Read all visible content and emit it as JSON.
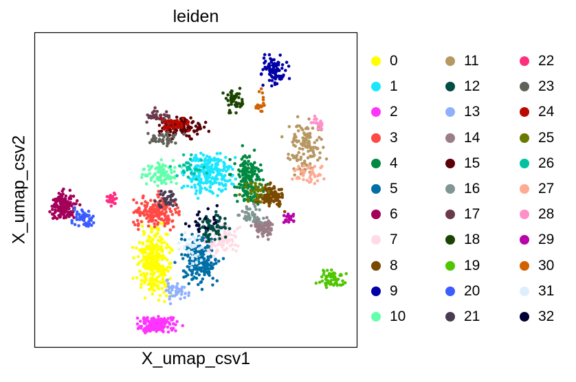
{
  "chart_data": {
    "type": "scatter",
    "title": "leiden",
    "xlabel": "X_umap_csv1",
    "ylabel": "X_umap_csv2",
    "grid": false,
    "legend_placement": "right, outside plot, 3 columns",
    "xlim": [
      0,
      100
    ],
    "ylim": [
      0,
      100
    ],
    "x_tick_labels": [],
    "y_tick_labels": [],
    "point_count_estimate": "approximately 3000 points",
    "series": [
      {
        "name": "0",
        "color": "#ffff00",
        "centroid": [
          37,
          27
        ],
        "spread": [
          4.5,
          9
        ],
        "n": 300
      },
      {
        "name": "1",
        "color": "#1ce6ff",
        "centroid": [
          54,
          55
        ],
        "spread": [
          6,
          6
        ],
        "n": 230
      },
      {
        "name": "2",
        "color": "#ff34ff",
        "centroid": [
          38,
          7
        ],
        "spread": [
          5.5,
          2.5
        ],
        "n": 150
      },
      {
        "name": "3",
        "color": "#ff4a46",
        "centroid": [
          38,
          43
        ],
        "spread": [
          6,
          4
        ],
        "n": 180
      },
      {
        "name": "4",
        "color": "#008941",
        "centroid": [
          66,
          53
        ],
        "spread": [
          4,
          7
        ],
        "n": 170
      },
      {
        "name": "5",
        "color": "#006fa6",
        "centroid": [
          51,
          28
        ],
        "spread": [
          5,
          7
        ],
        "n": 200
      },
      {
        "name": "6",
        "color": "#a30059",
        "centroid": [
          9,
          45
        ],
        "spread": [
          3.5,
          4
        ],
        "n": 140
      },
      {
        "name": "7",
        "color": "#ffdbe5",
        "centroid": [
          58,
          35
        ],
        "spread": [
          5,
          5
        ],
        "n": 90
      },
      {
        "name": "8",
        "color": "#7a4900",
        "centroid": [
          73,
          48
        ],
        "spread": [
          3.5,
          3
        ],
        "n": 110
      },
      {
        "name": "9",
        "color": "#0000a6",
        "centroid": [
          74,
          88
        ],
        "spread": [
          3,
          4
        ],
        "n": 90
      },
      {
        "name": "10",
        "color": "#63ffac",
        "centroid": [
          39,
          55
        ],
        "spread": [
          4.5,
          3
        ],
        "n": 90
      },
      {
        "name": "11",
        "color": "#b79762",
        "centroid": [
          84,
          64
        ],
        "spread": [
          5,
          9
        ],
        "n": 130
      },
      {
        "name": "12",
        "color": "#004d43",
        "centroid": [
          55,
          38
        ],
        "spread": [
          4,
          4
        ],
        "n": 70
      },
      {
        "name": "13",
        "color": "#8fb0ff",
        "centroid": [
          44,
          18
        ],
        "spread": [
          3,
          3
        ],
        "n": 40
      },
      {
        "name": "14",
        "color": "#997d87",
        "centroid": [
          71,
          38
        ],
        "spread": [
          3,
          2.5
        ],
        "n": 90
      },
      {
        "name": "15",
        "color": "#5a0007",
        "centroid": [
          46,
          70
        ],
        "spread": [
          6,
          3
        ],
        "n": 110
      },
      {
        "name": "16",
        "color": "#809693",
        "centroid": [
          67,
          42
        ],
        "spread": [
          3,
          3
        ],
        "n": 40
      },
      {
        "name": "17",
        "color": "#6a3a4c",
        "centroid": [
          38,
          73
        ],
        "spread": [
          4,
          2
        ],
        "n": 40
      },
      {
        "name": "18",
        "color": "#1b4400",
        "centroid": [
          62,
          78
        ],
        "spread": [
          2.5,
          3
        ],
        "n": 50
      },
      {
        "name": "19",
        "color": "#4fc601",
        "centroid": [
          92,
          22
        ],
        "spread": [
          3.5,
          2.5
        ],
        "n": 60
      },
      {
        "name": "20",
        "color": "#3b5dff",
        "centroid": [
          15,
          41
        ],
        "spread": [
          3,
          2.5
        ],
        "n": 50
      },
      {
        "name": "21",
        "color": "#4a3b53",
        "centroid": [
          41,
          47
        ],
        "spread": [
          2.5,
          2.5
        ],
        "n": 40
      },
      {
        "name": "22",
        "color": "#ff2f80",
        "centroid": [
          24,
          47
        ],
        "spread": [
          1.2,
          2
        ],
        "n": 25
      },
      {
        "name": "23",
        "color": "#61615a",
        "centroid": [
          40,
          66
        ],
        "spread": [
          5,
          2
        ],
        "n": 40
      },
      {
        "name": "24",
        "color": "#ba0900",
        "centroid": [
          44,
          71
        ],
        "spread": [
          5,
          2
        ],
        "n": 40
      },
      {
        "name": "25",
        "color": "#6b7900",
        "centroid": [
          68,
          50
        ],
        "spread": [
          3,
          3
        ],
        "n": 30
      },
      {
        "name": "26",
        "color": "#00c2a0",
        "centroid": [
          48,
          57
        ],
        "spread": [
          4,
          3
        ],
        "n": 30
      },
      {
        "name": "27",
        "color": "#ffaa92",
        "centroid": [
          85,
          55
        ],
        "spread": [
          4,
          3
        ],
        "n": 40
      },
      {
        "name": "28",
        "color": "#ff90c9",
        "centroid": [
          88,
          71
        ],
        "spread": [
          2,
          2
        ],
        "n": 20
      },
      {
        "name": "29",
        "color": "#b903aa",
        "centroid": [
          79,
          41
        ],
        "spread": [
          2,
          1.5
        ],
        "n": 20
      },
      {
        "name": "30",
        "color": "#d16100",
        "centroid": [
          70,
          78
        ],
        "spread": [
          1.5,
          4
        ],
        "n": 20
      },
      {
        "name": "31",
        "color": "#ddefff",
        "centroid": [
          49,
          32
        ],
        "spread": [
          5,
          5
        ],
        "n": 40
      },
      {
        "name": "32",
        "color": "#000035",
        "centroid": [
          52,
          40
        ],
        "spread": [
          4,
          4
        ],
        "n": 20
      }
    ]
  }
}
